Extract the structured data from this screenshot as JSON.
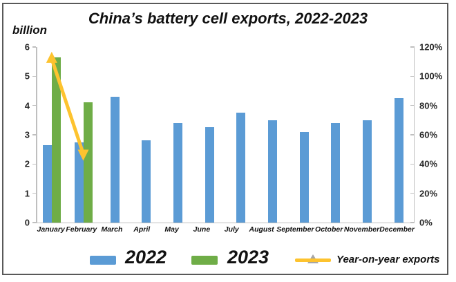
{
  "title": "China’s battery cell exports, 2022-2023",
  "chart_data": {
    "type": "bar",
    "categories": [
      "January",
      "February",
      "March",
      "April",
      "May",
      "June",
      "July",
      "August",
      "September",
      "October",
      "November",
      "December"
    ],
    "series": [
      {
        "name": "2022",
        "type": "bar",
        "color": "#5B9BD5",
        "axis": "left",
        "values": [
          2.65,
          2.75,
          4.3,
          2.8,
          3.4,
          3.25,
          3.75,
          3.5,
          3.1,
          3.4,
          3.5,
          4.25
        ]
      },
      {
        "name": "2023",
        "type": "bar",
        "color": "#6FAD47",
        "axis": "left",
        "values": [
          5.65,
          4.1,
          null,
          null,
          null,
          null,
          null,
          null,
          null,
          null,
          null,
          null
        ]
      },
      {
        "name": "Year-on-year exports",
        "type": "line",
        "color": "#FDC32F",
        "marker_color": "#A6A6A6",
        "axis": "right",
        "values": [
          112,
          47,
          null,
          null,
          null,
          null,
          null,
          null,
          null,
          null,
          null,
          null
        ]
      }
    ],
    "left_axis": {
      "label": "billion",
      "min": 0,
      "max": 6,
      "ticks": [
        "0",
        "1",
        "2",
        "3",
        "4",
        "5",
        "6"
      ]
    },
    "right_axis": {
      "min": 0,
      "max": 120,
      "ticks": [
        "0%",
        "20%",
        "40%",
        "60%",
        "80%",
        "100%",
        "120%"
      ]
    },
    "grid": false,
    "legend_position": "bottom",
    "colors": {
      "axis_line": "#BFBFBF",
      "text": "#111111",
      "frame_border": "#595959"
    }
  }
}
